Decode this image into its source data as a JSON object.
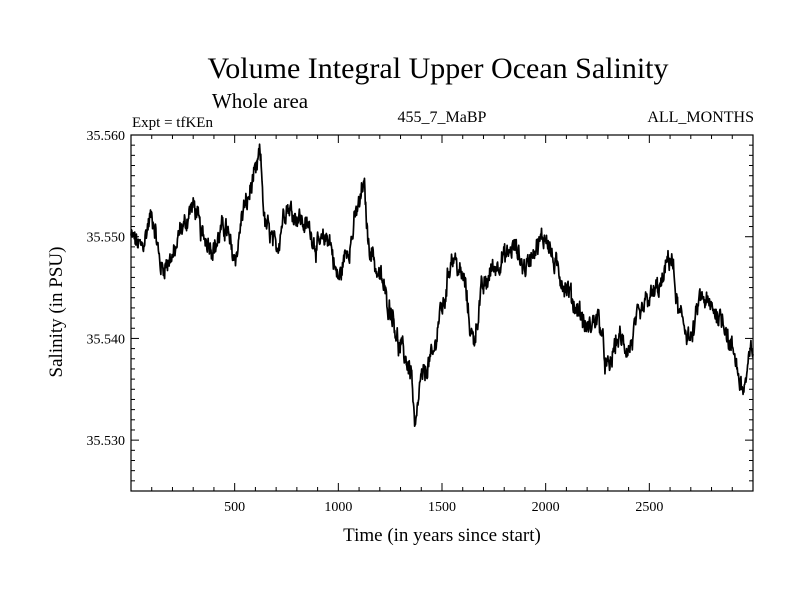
{
  "chart_data": {
    "type": "line",
    "title": "Volume Integral Upper Ocean Salinity",
    "subtitle": "Whole area",
    "left_label": "Expt = tfKEn",
    "center_label": "455_7_MaBP",
    "right_label": "ALL_MONTHS",
    "xlabel": "Time (in years since start)",
    "ylabel": "Salinity (in PSU)",
    "xlim": [
      0,
      3000
    ],
    "ylim": [
      35.525,
      35.56
    ],
    "xticks": [
      500,
      1000,
      1500,
      2000,
      2500
    ],
    "xtick_labels": [
      "500",
      "1000",
      "1500",
      "2000",
      "2500"
    ],
    "yticks": [
      35.53,
      35.54,
      35.55,
      35.56
    ],
    "ytick_labels": [
      "35.530",
      "35.540",
      "35.550",
      "35.560"
    ],
    "grid": false,
    "series": [
      {
        "color": "#000000",
        "x": [
          0,
          50,
          100,
          150,
          200,
          250,
          300,
          350,
          400,
          450,
          500,
          550,
          600,
          620,
          650,
          700,
          750,
          800,
          850,
          900,
          950,
          1000,
          1050,
          1100,
          1120,
          1150,
          1200,
          1250,
          1300,
          1350,
          1370,
          1400,
          1450,
          1500,
          1550,
          1600,
          1650,
          1700,
          1750,
          1800,
          1850,
          1900,
          1950,
          2000,
          2050,
          2100,
          2150,
          2200,
          2250,
          2300,
          2350,
          2400,
          2450,
          2500,
          2550,
          2600,
          2650,
          2700,
          2750,
          2800,
          2850,
          2900,
          2950,
          3000
        ],
        "y": [
          35.55,
          35.549,
          35.552,
          35.547,
          35.548,
          35.551,
          35.553,
          35.55,
          35.549,
          35.551,
          35.548,
          35.553,
          35.556,
          35.558,
          35.551,
          35.549,
          35.553,
          35.552,
          35.551,
          35.549,
          35.55,
          35.546,
          35.549,
          35.553,
          35.555,
          35.549,
          35.546,
          35.543,
          35.539,
          35.537,
          35.531,
          35.536,
          35.538,
          35.543,
          35.548,
          35.546,
          35.54,
          35.545,
          35.547,
          35.548,
          35.549,
          35.547,
          35.549,
          35.55,
          35.547,
          35.545,
          35.543,
          35.541,
          35.542,
          35.537,
          35.54,
          35.539,
          35.542,
          35.544,
          35.545,
          35.548,
          35.542,
          35.54,
          35.544,
          35.543,
          35.542,
          35.539,
          35.535,
          35.539
        ]
      }
    ]
  }
}
